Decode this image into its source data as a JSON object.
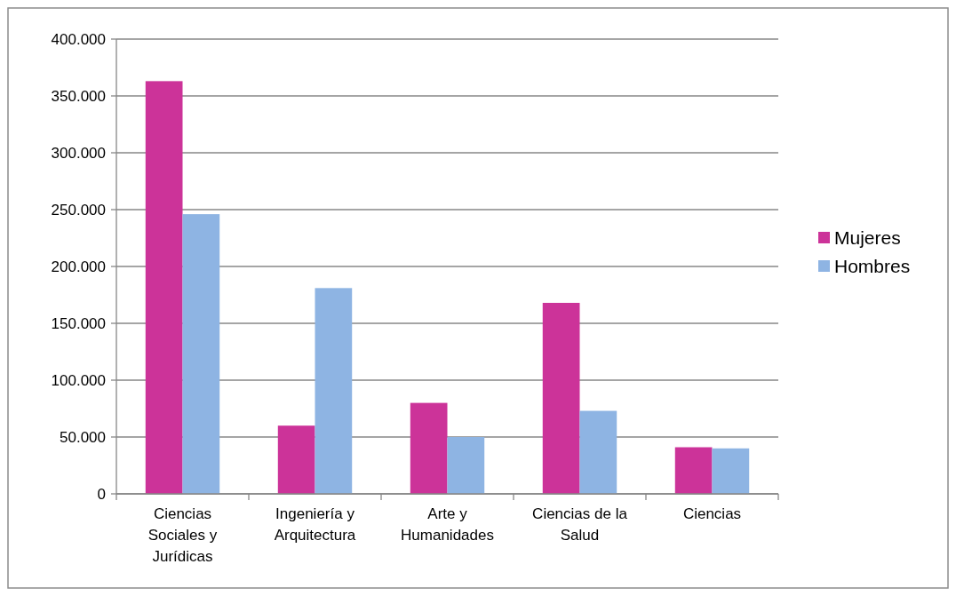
{
  "chart_data": {
    "type": "bar",
    "categories": [
      "Ciencias Sociales y Jurídicas",
      "Ingeniería y Arquitectura",
      "Arte y Humanidades",
      "Ciencias de la Salud",
      "Ciencias"
    ],
    "series": [
      {
        "name": "Mujeres",
        "color": "#cc3399",
        "values": [
          363000,
          60000,
          80000,
          168000,
          41000
        ]
      },
      {
        "name": "Hombres",
        "color": "#8eb4e3",
        "values": [
          246000,
          181000,
          50000,
          73000,
          40000
        ]
      }
    ],
    "ylim": [
      0,
      400000
    ],
    "yticks": [
      {
        "value": 0,
        "label": "0"
      },
      {
        "value": 50000,
        "label": "50.000"
      },
      {
        "value": 100000,
        "label": "100.000"
      },
      {
        "value": 150000,
        "label": "150.000"
      },
      {
        "value": 200000,
        "label": "200.000"
      },
      {
        "value": 250000,
        "label": "250.000"
      },
      {
        "value": 300000,
        "label": "300.000"
      },
      {
        "value": 350000,
        "label": "350.000"
      },
      {
        "value": 400000,
        "label": "400.000"
      }
    ],
    "grid": "y",
    "legend": "right"
  }
}
